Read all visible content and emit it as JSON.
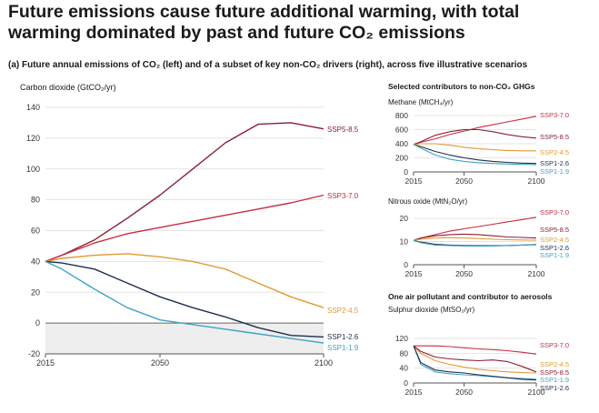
{
  "header": {
    "title": "Future emissions cause future additional warming, with total warming dominated by past and future CO₂ emissions",
    "subtitle": "(a) Future annual emissions of CO₂ (left) and of a subset of key non-CO₂ drivers (right), across five illustrative scenarios"
  },
  "right_panel": {
    "section1": "Selected contributors to non-CO₂ GHGs",
    "section2": "One air pollutant and contributor to aerosols"
  },
  "colors": {
    "SSP1-1.9": "#3fa3c4",
    "SSP1-2.6": "#1e2f4f",
    "SSP2-4.5": "#e09a35",
    "SSP3-7.0": "#c52d44",
    "SSP5-8.5": "#8a2035",
    "axis": "#555555",
    "grid": "#dddddd",
    "negative_band": "#eeeeee"
  },
  "chart_data": [
    {
      "type": "line",
      "title": "",
      "ylabel": "Carbon dioxide (GtCO₂/yr)",
      "xlabel": "",
      "x": [
        2015,
        2020,
        2030,
        2040,
        2050,
        2060,
        2070,
        2080,
        2090,
        2100
      ],
      "xticks": [
        2015,
        2050,
        2100
      ],
      "yticks": [
        -20,
        0,
        20,
        40,
        60,
        80,
        100,
        120,
        140
      ],
      "xlim": [
        2015,
        2100
      ],
      "ylim": [
        -20,
        140
      ],
      "grid": true,
      "legend": "line-end labels",
      "series": [
        {
          "name": "SSP5-8.5",
          "values": [
            40,
            44,
            54,
            68,
            83,
            100,
            117,
            129,
            130,
            126
          ]
        },
        {
          "name": "SSP3-7.0",
          "values": [
            40,
            44,
            52,
            58,
            62,
            66,
            70,
            74,
            78,
            83
          ]
        },
        {
          "name": "SSP2-4.5",
          "values": [
            40,
            42,
            44,
            45,
            43,
            40,
            35,
            26,
            17,
            10
          ]
        },
        {
          "name": "SSP1-2.6",
          "values": [
            40,
            39,
            35,
            26,
            17,
            10,
            4,
            -3,
            -8,
            -9
          ]
        },
        {
          "name": "SSP1-1.9",
          "values": [
            40,
            35,
            22,
            10,
            2,
            -1,
            -4,
            -7,
            -10,
            -13
          ]
        }
      ]
    },
    {
      "type": "line",
      "title": "",
      "ylabel": "Methane (MtCH₄/yr)",
      "x": [
        2015,
        2020,
        2030,
        2040,
        2050,
        2060,
        2070,
        2080,
        2090,
        2100
      ],
      "xticks": [
        2015,
        2050,
        2100
      ],
      "yticks": [
        0,
        200,
        400,
        600,
        800
      ],
      "xlim": [
        2015,
        2100
      ],
      "ylim": [
        0,
        800
      ],
      "grid": true,
      "legend": "line-end labels",
      "series": [
        {
          "name": "SSP3-7.0",
          "values": [
            390,
            420,
            470,
            530,
            580,
            630,
            670,
            710,
            750,
            790
          ]
        },
        {
          "name": "SSP5-8.5",
          "values": [
            390,
            430,
            520,
            570,
            600,
            600,
            570,
            530,
            500,
            480
          ]
        },
        {
          "name": "SSP2-4.5",
          "values": [
            390,
            400,
            400,
            380,
            350,
            330,
            315,
            305,
            300,
            300
          ]
        },
        {
          "name": "SSP1-2.6",
          "values": [
            390,
            360,
            290,
            240,
            200,
            170,
            150,
            135,
            125,
            120
          ]
        },
        {
          "name": "SSP1-1.9",
          "values": [
            390,
            340,
            240,
            180,
            150,
            130,
            120,
            112,
            107,
            105
          ]
        }
      ]
    },
    {
      "type": "line",
      "title": "",
      "ylabel": "Nitrous oxide (MtN₂O/yr)",
      "x": [
        2015,
        2020,
        2030,
        2040,
        2050,
        2060,
        2070,
        2080,
        2090,
        2100
      ],
      "xticks": [
        2015,
        2050,
        2100
      ],
      "yticks": [
        0,
        10,
        20
      ],
      "xlim": [
        2015,
        2100
      ],
      "ylim": [
        0,
        22
      ],
      "grid": true,
      "legend": "line-end labels",
      "series": [
        {
          "name": "SSP3-7.0",
          "values": [
            10.5,
            11.5,
            13,
            14.5,
            15.5,
            16.5,
            17.5,
            18.5,
            19.5,
            20.5
          ]
        },
        {
          "name": "SSP5-8.5",
          "values": [
            10.5,
            11.5,
            12.5,
            13,
            13.2,
            13,
            12.5,
            12,
            11.8,
            11.5
          ]
        },
        {
          "name": "SSP2-4.5",
          "values": [
            10.5,
            11,
            11.5,
            11.7,
            11.5,
            11.3,
            11,
            10.8,
            10.7,
            10.6
          ]
        },
        {
          "name": "SSP1-2.6",
          "values": [
            10.5,
            9.8,
            8.8,
            8.5,
            8.3,
            8.2,
            8.2,
            8.3,
            8.5,
            8.7
          ]
        },
        {
          "name": "SSP1-1.9",
          "values": [
            10.5,
            9.5,
            8.5,
            8.3,
            8.1,
            8.0,
            8.1,
            8.3,
            8.5,
            8.8
          ]
        }
      ]
    },
    {
      "type": "line",
      "title": "",
      "ylabel": "Sulphur dioxide (MtSO₂/yr)",
      "x": [
        2015,
        2020,
        2030,
        2040,
        2050,
        2060,
        2070,
        2080,
        2090,
        2100
      ],
      "xticks": [
        2015,
        2050,
        2100
      ],
      "yticks": [
        0,
        40,
        80,
        120
      ],
      "xlim": [
        2015,
        2100
      ],
      "ylim": [
        0,
        130
      ],
      "grid": true,
      "legend": "line-end labels",
      "series": [
        {
          "name": "SSP3-7.0",
          "values": [
            100,
            100,
            100,
            98,
            95,
            92,
            90,
            87,
            83,
            78
          ]
        },
        {
          "name": "SSP2-4.5",
          "values": [
            100,
            80,
            60,
            50,
            43,
            37,
            33,
            30,
            28,
            27
          ]
        },
        {
          "name": "SSP5-8.5",
          "values": [
            100,
            85,
            70,
            65,
            62,
            60,
            62,
            58,
            45,
            30
          ]
        },
        {
          "name": "SSP1-1.9",
          "values": [
            100,
            50,
            30,
            25,
            22,
            20,
            17,
            14,
            12,
            10
          ]
        },
        {
          "name": "SSP1-2.6",
          "values": [
            100,
            55,
            35,
            30,
            27,
            22,
            18,
            14,
            10,
            8
          ]
        }
      ]
    }
  ]
}
